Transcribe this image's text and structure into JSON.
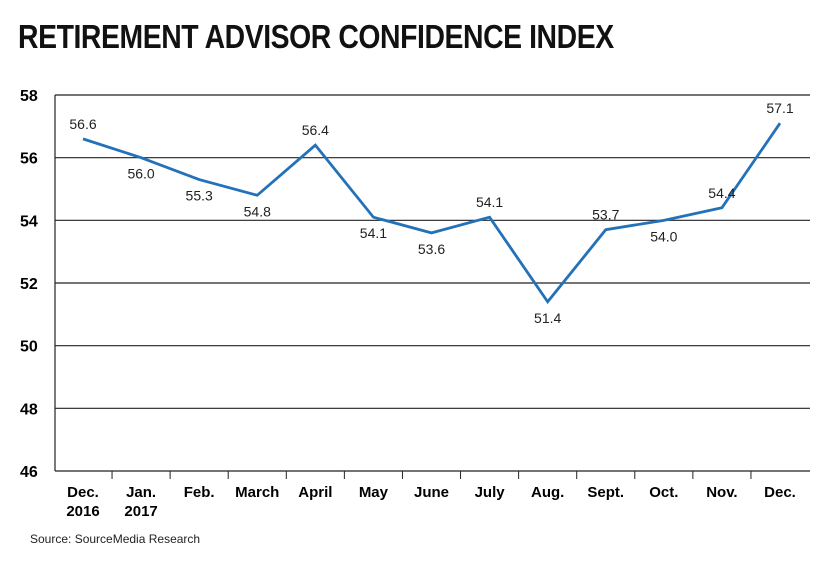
{
  "chart_data": {
    "type": "line",
    "title": "RETIREMENT ADVISOR CONFIDENCE INDEX",
    "xlabel": "",
    "ylabel": "",
    "categories": [
      [
        "Dec.",
        "2016"
      ],
      [
        "Jan.",
        "2017"
      ],
      [
        "Feb."
      ],
      [
        "March"
      ],
      [
        "April"
      ],
      [
        "May"
      ],
      [
        "June"
      ],
      [
        "July"
      ],
      [
        "Aug."
      ],
      [
        "Sept."
      ],
      [
        "Oct."
      ],
      [
        "Nov."
      ],
      [
        "Dec."
      ]
    ],
    "series": [
      {
        "values": [
          56.6,
          56.0,
          55.3,
          54.8,
          56.4,
          54.1,
          53.6,
          54.1,
          51.4,
          53.7,
          54.0,
          54.4,
          57.1
        ],
        "labels": [
          "56.6",
          "56.0",
          "55.3",
          "54.8",
          "56.4",
          "54.1",
          "53.6",
          "54.1",
          "51.4",
          "53.7",
          "54.0",
          "54.4",
          "57.1"
        ]
      }
    ],
    "ylim": [
      46,
      58
    ],
    "yticks": [
      "46",
      "48",
      "50",
      "52",
      "54",
      "56",
      "58"
    ],
    "grid": true,
    "line_color": "#2372b9",
    "source": "Source: SourceMedia Research"
  }
}
